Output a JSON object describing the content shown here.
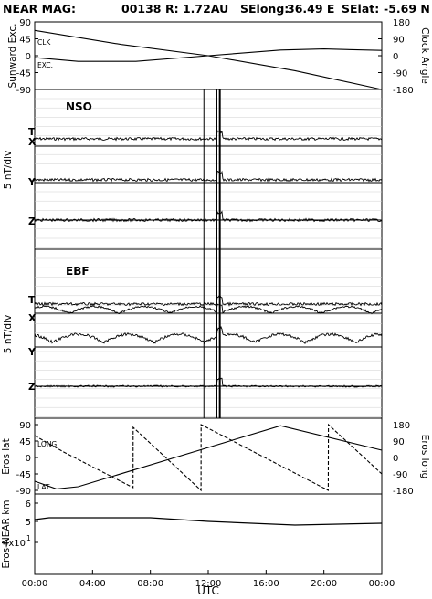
{
  "header": {
    "mission": "NEAR MAG:",
    "day": "00138",
    "radius": "R: 1.72AU",
    "selong_label": "SElong:",
    "selong_value": "36.49 E",
    "selat_label": "SElat:",
    "selat_value": "-5.69 N"
  },
  "chart_data": [
    {
      "panel": "angles",
      "type": "line",
      "ylabel": "Sunward Exc.",
      "ylabel_right": "Clock Angle",
      "ylim": [
        -90,
        90
      ],
      "ylim_right": [
        -180,
        180
      ],
      "yticks": [
        "90",
        "45",
        "0",
        "-45",
        "-90"
      ],
      "yticks_right": [
        "180",
        "90",
        "0",
        "-90",
        "-180"
      ],
      "series": [
        {
          "name": "CLK",
          "x": [
            0,
            6,
            12,
            18,
            24
          ],
          "values": [
            135,
            60,
            0,
            -80,
            -180
          ]
        },
        {
          "name": "EXC.",
          "x": [
            0,
            3,
            7,
            12,
            17,
            20,
            24
          ],
          "values": [
            -5,
            -15,
            -15,
            0,
            15,
            18,
            14
          ]
        }
      ]
    },
    {
      "panel": "NSO",
      "type": "line",
      "title": "NSO",
      "ylabel": "5 nT/div",
      "components": [
        "T",
        "X",
        "Y",
        "Z"
      ],
      "events_hours": [
        11.7,
        12.6,
        12.8
      ]
    },
    {
      "panel": "EBF",
      "type": "line",
      "title": "EBF",
      "ylabel": "5 nT/div",
      "components": [
        "T",
        "X",
        "Y",
        "Z"
      ],
      "events_hours": [
        11.7,
        12.6,
        12.8
      ]
    },
    {
      "panel": "eros",
      "type": "line",
      "ylabel": "Eros lat",
      "ylabel_right": "Eros long",
      "ylim": [
        -90,
        90
      ],
      "ylim_right": [
        -180,
        180
      ],
      "yticks": [
        "90",
        "45",
        "0",
        "-45",
        "-90"
      ],
      "yticks_right": [
        "180",
        "90",
        "0",
        "-90",
        "-180"
      ],
      "series": [
        {
          "name": "LAT",
          "x": [
            0,
            1.5,
            3.0,
            17.0,
            24
          ],
          "values": [
            -65,
            -86,
            -80,
            87,
            20
          ]
        },
        {
          "name": "LONG",
          "x": [
            0,
            2,
            6.8,
            6.81,
            11.5,
            11.51,
            20.3,
            20.31,
            24
          ],
          "values": [
            120,
            30,
            -165,
            165,
            -180,
            180,
            -180,
            180,
            -90
          ]
        }
      ]
    },
    {
      "panel": "range",
      "type": "line",
      "ylabel": "Eros-NEAR km",
      "yticks": [
        "6",
        "5",
        "4x10"
      ],
      "ytick_sup": "1",
      "series": [
        {
          "name": "range",
          "x": [
            0,
            1,
            8,
            12,
            18,
            24
          ],
          "values": [
            51.5,
            52,
            52,
            51,
            50,
            50.5
          ]
        }
      ]
    }
  ],
  "xaxis": {
    "label": "UTC",
    "ticks": [
      "00:00",
      "04:00",
      "08:00",
      "12:00",
      "16:00",
      "20:00",
      "00:00"
    ]
  },
  "labels": {
    "clk": "CLK",
    "exc": "EXC.",
    "nso": "NSO",
    "ebf": "EBF",
    "long": "LONG",
    "lat": "LAT",
    "comp_t": "T",
    "comp_x": "X",
    "comp_y": "Y",
    "comp_z": "Z"
  }
}
